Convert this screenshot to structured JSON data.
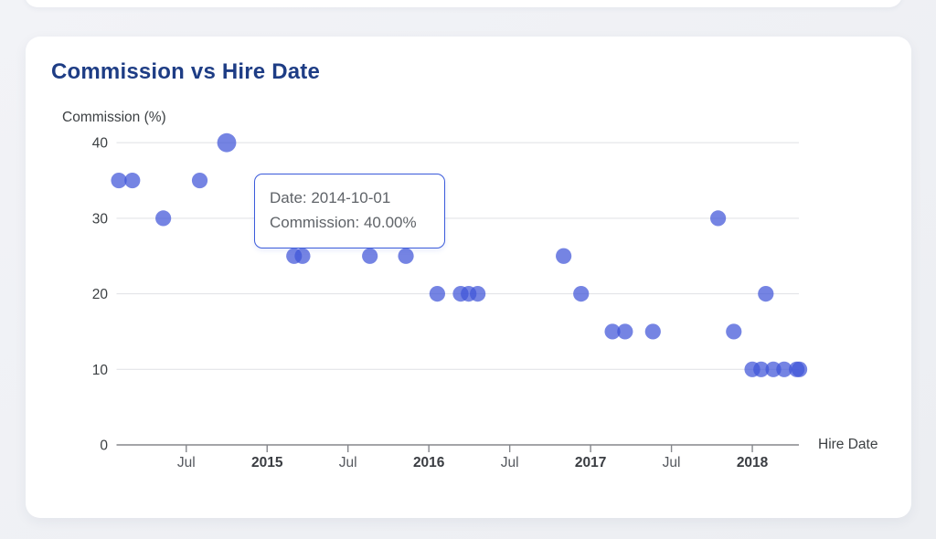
{
  "card": {
    "title": "Commission vs Hire Date"
  },
  "tooltip": {
    "lines": [
      "Date: 2014-10-01",
      "Commission: 40.00%"
    ],
    "border_color": "#3b5bdb"
  },
  "chart_data": {
    "type": "scatter",
    "title": "Commission vs Hire Date",
    "xlabel": "Hire Date",
    "ylabel": "Commission (%)",
    "grid": true,
    "legend": "none",
    "ylim": [
      0,
      42
    ],
    "x_range": [
      "2014-01-01",
      "2018-06-01"
    ],
    "colors": {
      "point": "#4055d8",
      "point_opacity": 0.72,
      "grid": "#e3e4e8",
      "axis": "#85878c",
      "title": "#1e3d85"
    },
    "y_axis": {
      "ticks": [
        {
          "value": 0,
          "label": "0"
        },
        {
          "value": 10,
          "label": "10"
        },
        {
          "value": 20,
          "label": "20"
        },
        {
          "value": 30,
          "label": "30"
        },
        {
          "value": 40,
          "label": "40"
        }
      ]
    },
    "x_axis": {
      "ticks": [
        {
          "label": "Jul",
          "date": "2014-07-01",
          "bold": false
        },
        {
          "label": "2015",
          "date": "2015-01-01",
          "bold": true
        },
        {
          "label": "Jul",
          "date": "2015-07-01",
          "bold": false
        },
        {
          "label": "2016",
          "date": "2016-01-01",
          "bold": true
        },
        {
          "label": "Jul",
          "date": "2016-07-01",
          "bold": false
        },
        {
          "label": "2017",
          "date": "2017-01-01",
          "bold": true
        },
        {
          "label": "Jul",
          "date": "2017-07-01",
          "bold": false
        },
        {
          "label": "2018",
          "date": "2018-01-01",
          "bold": true
        }
      ]
    },
    "highlight": {
      "date": "2014-10-01",
      "value": 40,
      "value_label": "40.00%"
    },
    "points": [
      {
        "date": "2014-02-01",
        "value": 35
      },
      {
        "date": "2014-03-01",
        "value": 35
      },
      {
        "date": "2014-05-10",
        "value": 30
      },
      {
        "date": "2014-08-01",
        "value": 35
      },
      {
        "date": "2014-10-01",
        "value": 40,
        "highlighted": true
      },
      {
        "date": "2015-03-01",
        "value": 25
      },
      {
        "date": "2015-03-20",
        "value": 25
      },
      {
        "date": "2015-08-20",
        "value": 25
      },
      {
        "date": "2015-11-10",
        "value": 25
      },
      {
        "date": "2016-01-20",
        "value": 20
      },
      {
        "date": "2016-03-12",
        "value": 20
      },
      {
        "date": "2016-03-30",
        "value": 20
      },
      {
        "date": "2016-04-20",
        "value": 20
      },
      {
        "date": "2016-11-01",
        "value": 25
      },
      {
        "date": "2016-12-10",
        "value": 20
      },
      {
        "date": "2017-02-20",
        "value": 15
      },
      {
        "date": "2017-03-18",
        "value": 15
      },
      {
        "date": "2017-05-20",
        "value": 15
      },
      {
        "date": "2017-10-15",
        "value": 30
      },
      {
        "date": "2017-11-20",
        "value": 15
      },
      {
        "date": "2018-01-01",
        "value": 10
      },
      {
        "date": "2018-01-21",
        "value": 10
      },
      {
        "date": "2018-02-01",
        "value": 20
      },
      {
        "date": "2018-02-18",
        "value": 10
      },
      {
        "date": "2018-03-12",
        "value": 10
      },
      {
        "date": "2018-04-10",
        "value": 10
      },
      {
        "date": "2018-04-16",
        "value": 10
      }
    ]
  }
}
